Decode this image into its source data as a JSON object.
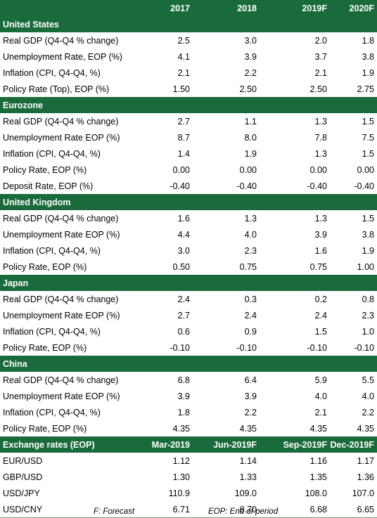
{
  "header": {
    "label": "",
    "cols": [
      "2017",
      "2018",
      "2019F",
      "2020F"
    ]
  },
  "sections": [
    {
      "title": "United States",
      "rows": [
        {
          "label": "Real GDP (Q4-Q4 % change)",
          "values": [
            "2.5",
            "3.0",
            "2.0",
            "1.8"
          ]
        },
        {
          "label": "Unemployment Rate, EOP (%)",
          "values": [
            "4.1",
            "3.9",
            "3.7",
            "3.8"
          ]
        },
        {
          "label": "Inflation (CPI, Q4-Q4, %)",
          "values": [
            "2.1",
            "2.2",
            "2.1",
            "1.9"
          ]
        },
        {
          "label": "Policy Rate (Top), EOP (%)",
          "values": [
            "1.50",
            "2.50",
            "2.50",
            "2.75"
          ]
        }
      ]
    },
    {
      "title": "Eurozone",
      "rows": [
        {
          "label": "Real GDP (Q4-Q4 % change)",
          "values": [
            "2.7",
            "1.1",
            "1.3",
            "1.5"
          ]
        },
        {
          "label": "Unemployment Rate EOP (%)",
          "values": [
            "8.7",
            "8.0",
            "7.8",
            "7.5"
          ]
        },
        {
          "label": "Inflation (CPI, Q4-Q4, %)",
          "values": [
            "1.4",
            "1.9",
            "1.3",
            "1.5"
          ]
        },
        {
          "label": "Policy Rate, EOP (%)",
          "values": [
            "0.00",
            "0.00",
            "0.00",
            "0.00"
          ]
        },
        {
          "label": "Deposit Rate, EOP (%)",
          "values": [
            "-0.40",
            "-0.40",
            "-0.40",
            "-0.40"
          ]
        }
      ]
    },
    {
      "title": "United Kingdom",
      "rows": [
        {
          "label": "Real GDP (Q4-Q4 % change)",
          "values": [
            "1.6",
            "1.3",
            "1.3",
            "1.5"
          ]
        },
        {
          "label": "Unemployment Rate EOP (%)",
          "values": [
            "4.4",
            "4.0",
            "3.9",
            "3.8"
          ]
        },
        {
          "label": "Inflation (CPI, Q4-Q4, %)",
          "values": [
            "3.0",
            "2.3",
            "1.6",
            "1.9"
          ]
        },
        {
          "label": "Policy Rate, EOP (%)",
          "values": [
            "0.50",
            "0.75",
            "0.75",
            "1.00"
          ]
        }
      ]
    },
    {
      "title": "Japan",
      "rows": [
        {
          "label": "Real GDP (Q4-Q4 % change)",
          "values": [
            "2.4",
            "0.3",
            "0.2",
            "0.8"
          ]
        },
        {
          "label": "Unemployment Rate EOP (%)",
          "values": [
            "2.7",
            "2.4",
            "2.4",
            "2.3"
          ]
        },
        {
          "label": "Inflation (CPI, Q4-Q4, %)",
          "values": [
            "0.6",
            "0.9",
            "1.5",
            "1.0"
          ]
        },
        {
          "label": "Policy Rate, EOP (%)",
          "values": [
            "-0.10",
            "-0.10",
            "-0.10",
            "-0.10"
          ]
        }
      ]
    },
    {
      "title": "China",
      "rows": [
        {
          "label": "Real GDP (Q4-Q4 % change)",
          "values": [
            "6.8",
            "6.4",
            "5.9",
            "5.5"
          ]
        },
        {
          "label": "Unemployment Rate EOP (%)",
          "values": [
            "3.9",
            "3.9",
            "4.0",
            "4.0"
          ]
        },
        {
          "label": "Inflation (CPI, Q4-Q4, %)",
          "values": [
            "1.8",
            "2.2",
            "2.1",
            "2.2"
          ]
        },
        {
          "label": "Policy Rate, EOP (%)",
          "values": [
            "4.35",
            "4.35",
            "4.35",
            "4.35"
          ]
        }
      ]
    }
  ],
  "fx": {
    "title": "Exchange rates (EOP)",
    "cols": [
      "Mar-2019",
      "Jun-2019F",
      "Sep-2019F",
      "Dec-2019F"
    ],
    "rows": [
      {
        "label": "EUR/USD",
        "values": [
          "1.12",
          "1.14",
          "1.16",
          "1.17"
        ]
      },
      {
        "label": "GBP/USD",
        "values": [
          "1.30",
          "1.33",
          "1.35",
          "1.36"
        ]
      },
      {
        "label": "USD/JPY",
        "values": [
          "110.9",
          "109.0",
          "108.0",
          "107.0"
        ]
      },
      {
        "label": "USD/CNY",
        "values": [
          "6.71",
          "6.70",
          "6.68",
          "6.65"
        ]
      }
    ]
  },
  "footnotes": {
    "forecast": "F: Forecast",
    "eop": "EOP: End of period"
  },
  "colors": {
    "header_bg": "#1a6b3c",
    "header_text": "#ffffff",
    "row_border": "#7a9a7a"
  }
}
